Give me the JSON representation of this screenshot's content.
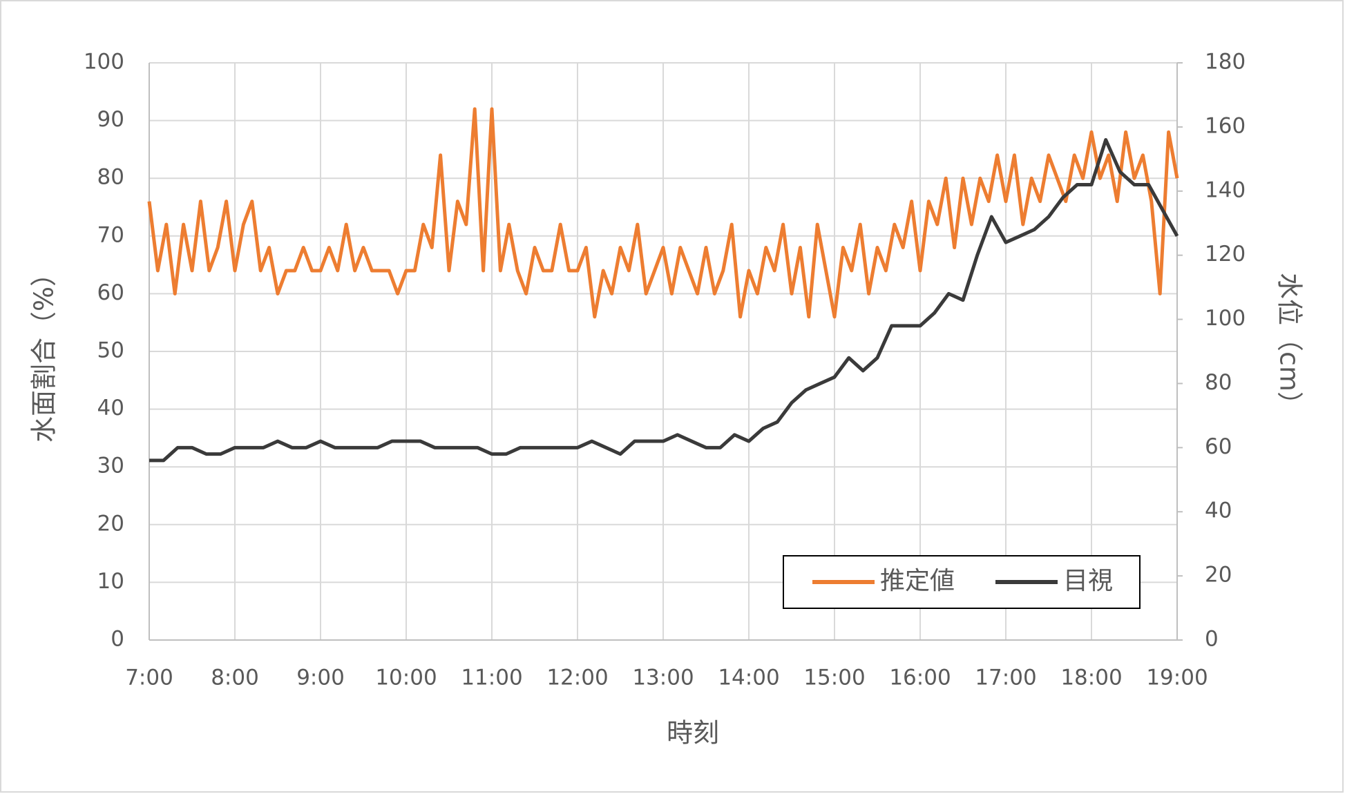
{
  "chart_data": {
    "type": "line",
    "xlabel": "時刻",
    "ylabel": "水面割合（%）",
    "y2label": "水位（cm）",
    "xlim": [
      7,
      19
    ],
    "xticks": [
      {
        "value": 7,
        "label": "7:00"
      },
      {
        "value": 8,
        "label": "8:00"
      },
      {
        "value": 9,
        "label": "9:00"
      },
      {
        "value": 10,
        "label": "10:00"
      },
      {
        "value": 11,
        "label": "11:00"
      },
      {
        "value": 12,
        "label": "12:00"
      },
      {
        "value": 13,
        "label": "13:00"
      },
      {
        "value": 14,
        "label": "14:00"
      },
      {
        "value": 15,
        "label": "15:00"
      },
      {
        "value": 16,
        "label": "16:00"
      },
      {
        "value": 17,
        "label": "17:00"
      },
      {
        "value": 18,
        "label": "18:00"
      },
      {
        "value": 19,
        "label": "19:00"
      }
    ],
    "ylim": [
      0,
      100
    ],
    "yticks": [
      0,
      10,
      20,
      30,
      40,
      50,
      60,
      70,
      80,
      90,
      100
    ],
    "y2lim": [
      0,
      180
    ],
    "y2ticks": [
      0,
      20,
      40,
      60,
      80,
      100,
      120,
      140,
      160,
      180
    ],
    "grid": true,
    "legend": "lower right",
    "series": [
      {
        "name": "推定値",
        "color": "#ed7d31",
        "axis": "y",
        "x": [
          7.0,
          7.1,
          7.2,
          7.3,
          7.4,
          7.5,
          7.6,
          7.7,
          7.8,
          7.9,
          8.0,
          8.1,
          8.2,
          8.3,
          8.4,
          8.5,
          8.6,
          8.7,
          8.8,
          8.9,
          9.0,
          9.1,
          9.2,
          9.3,
          9.4,
          9.5,
          9.6,
          9.7,
          9.8,
          9.9,
          10.0,
          10.1,
          10.2,
          10.3,
          10.4,
          10.5,
          10.6,
          10.7,
          10.8,
          10.9,
          11.0,
          11.1,
          11.2,
          11.3,
          11.4,
          11.5,
          11.6,
          11.7,
          11.8,
          11.9,
          12.0,
          12.1,
          12.2,
          12.3,
          12.4,
          12.5,
          12.6,
          12.7,
          12.8,
          12.9,
          13.0,
          13.1,
          13.2,
          13.3,
          13.4,
          13.5,
          13.6,
          13.7,
          13.8,
          13.9,
          14.0,
          14.1,
          14.2,
          14.3,
          14.4,
          14.5,
          14.6,
          14.7,
          14.8,
          14.9,
          15.0,
          15.1,
          15.2,
          15.3,
          15.4,
          15.5,
          15.6,
          15.7,
          15.8,
          15.9,
          16.0,
          16.1,
          16.2,
          16.3,
          16.4,
          16.5,
          16.6,
          16.7,
          16.8,
          16.9,
          17.0,
          17.1,
          17.2,
          17.3,
          17.4,
          17.5,
          17.6,
          17.7,
          17.8,
          17.9,
          18.0,
          18.1,
          18.2,
          18.3,
          18.4,
          18.5,
          18.6,
          18.7,
          18.8,
          18.9,
          19.0
        ],
        "values": [
          76,
          64,
          72,
          60,
          72,
          64,
          76,
          64,
          68,
          76,
          64,
          72,
          76,
          64,
          68,
          60,
          64,
          64,
          68,
          64,
          64,
          68,
          64,
          72,
          64,
          68,
          64,
          64,
          64,
          60,
          64,
          64,
          72,
          68,
          84,
          64,
          76,
          72,
          92,
          64,
          92,
          64,
          72,
          64,
          60,
          68,
          64,
          64,
          72,
          64,
          64,
          68,
          56,
          64,
          60,
          68,
          64,
          72,
          60,
          64,
          68,
          60,
          68,
          64,
          60,
          68,
          60,
          64,
          72,
          56,
          64,
          60,
          68,
          64,
          72,
          60,
          68,
          56,
          72,
          64,
          56,
          68,
          64,
          72,
          60,
          68,
          64,
          72,
          68,
          76,
          64,
          76,
          72,
          80,
          68,
          80,
          72,
          80,
          76,
          84,
          76,
          84,
          72,
          80,
          76,
          84,
          80,
          76,
          84,
          80,
          88,
          80,
          84,
          76,
          88,
          80,
          84,
          76,
          60,
          88,
          80
        ]
      },
      {
        "name": "目視",
        "color": "#3a3a3a",
        "axis": "y2",
        "x": [
          7,
          7.167,
          7.333,
          7.5,
          7.667,
          7.833,
          8,
          8.167,
          8.333,
          8.5,
          8.667,
          8.833,
          9,
          9.167,
          9.333,
          9.5,
          9.667,
          9.833,
          10,
          10.167,
          10.333,
          10.5,
          10.667,
          10.833,
          11,
          11.167,
          11.333,
          11.5,
          11.667,
          11.833,
          12,
          12.167,
          12.333,
          12.5,
          12.667,
          12.833,
          13,
          13.167,
          13.333,
          13.5,
          13.667,
          13.833,
          14,
          14.167,
          14.333,
          14.5,
          14.667,
          14.833,
          15,
          15.167,
          15.333,
          15.5,
          15.667,
          15.833,
          16,
          16.167,
          16.333,
          16.5,
          16.667,
          16.833,
          17,
          17.167,
          17.333,
          17.5,
          17.667,
          17.833,
          18,
          18.167,
          18.333,
          18.5,
          18.667,
          18.833,
          19
        ],
        "values": [
          56,
          56,
          60,
          60,
          58,
          58,
          60,
          60,
          60,
          62,
          60,
          60,
          62,
          60,
          60,
          60,
          60,
          62,
          62,
          62,
          60,
          60,
          60,
          60,
          58,
          58,
          60,
          60,
          60,
          60,
          60,
          62,
          60,
          58,
          62,
          62,
          62,
          64,
          62,
          60,
          60,
          64,
          62,
          66,
          68,
          74,
          78,
          80,
          82,
          88,
          84,
          88,
          98,
          98,
          98,
          102,
          108,
          106,
          120,
          132,
          124,
          126,
          128,
          132,
          138,
          142,
          142,
          156,
          146,
          142,
          142,
          134,
          126
        ]
      }
    ]
  }
}
